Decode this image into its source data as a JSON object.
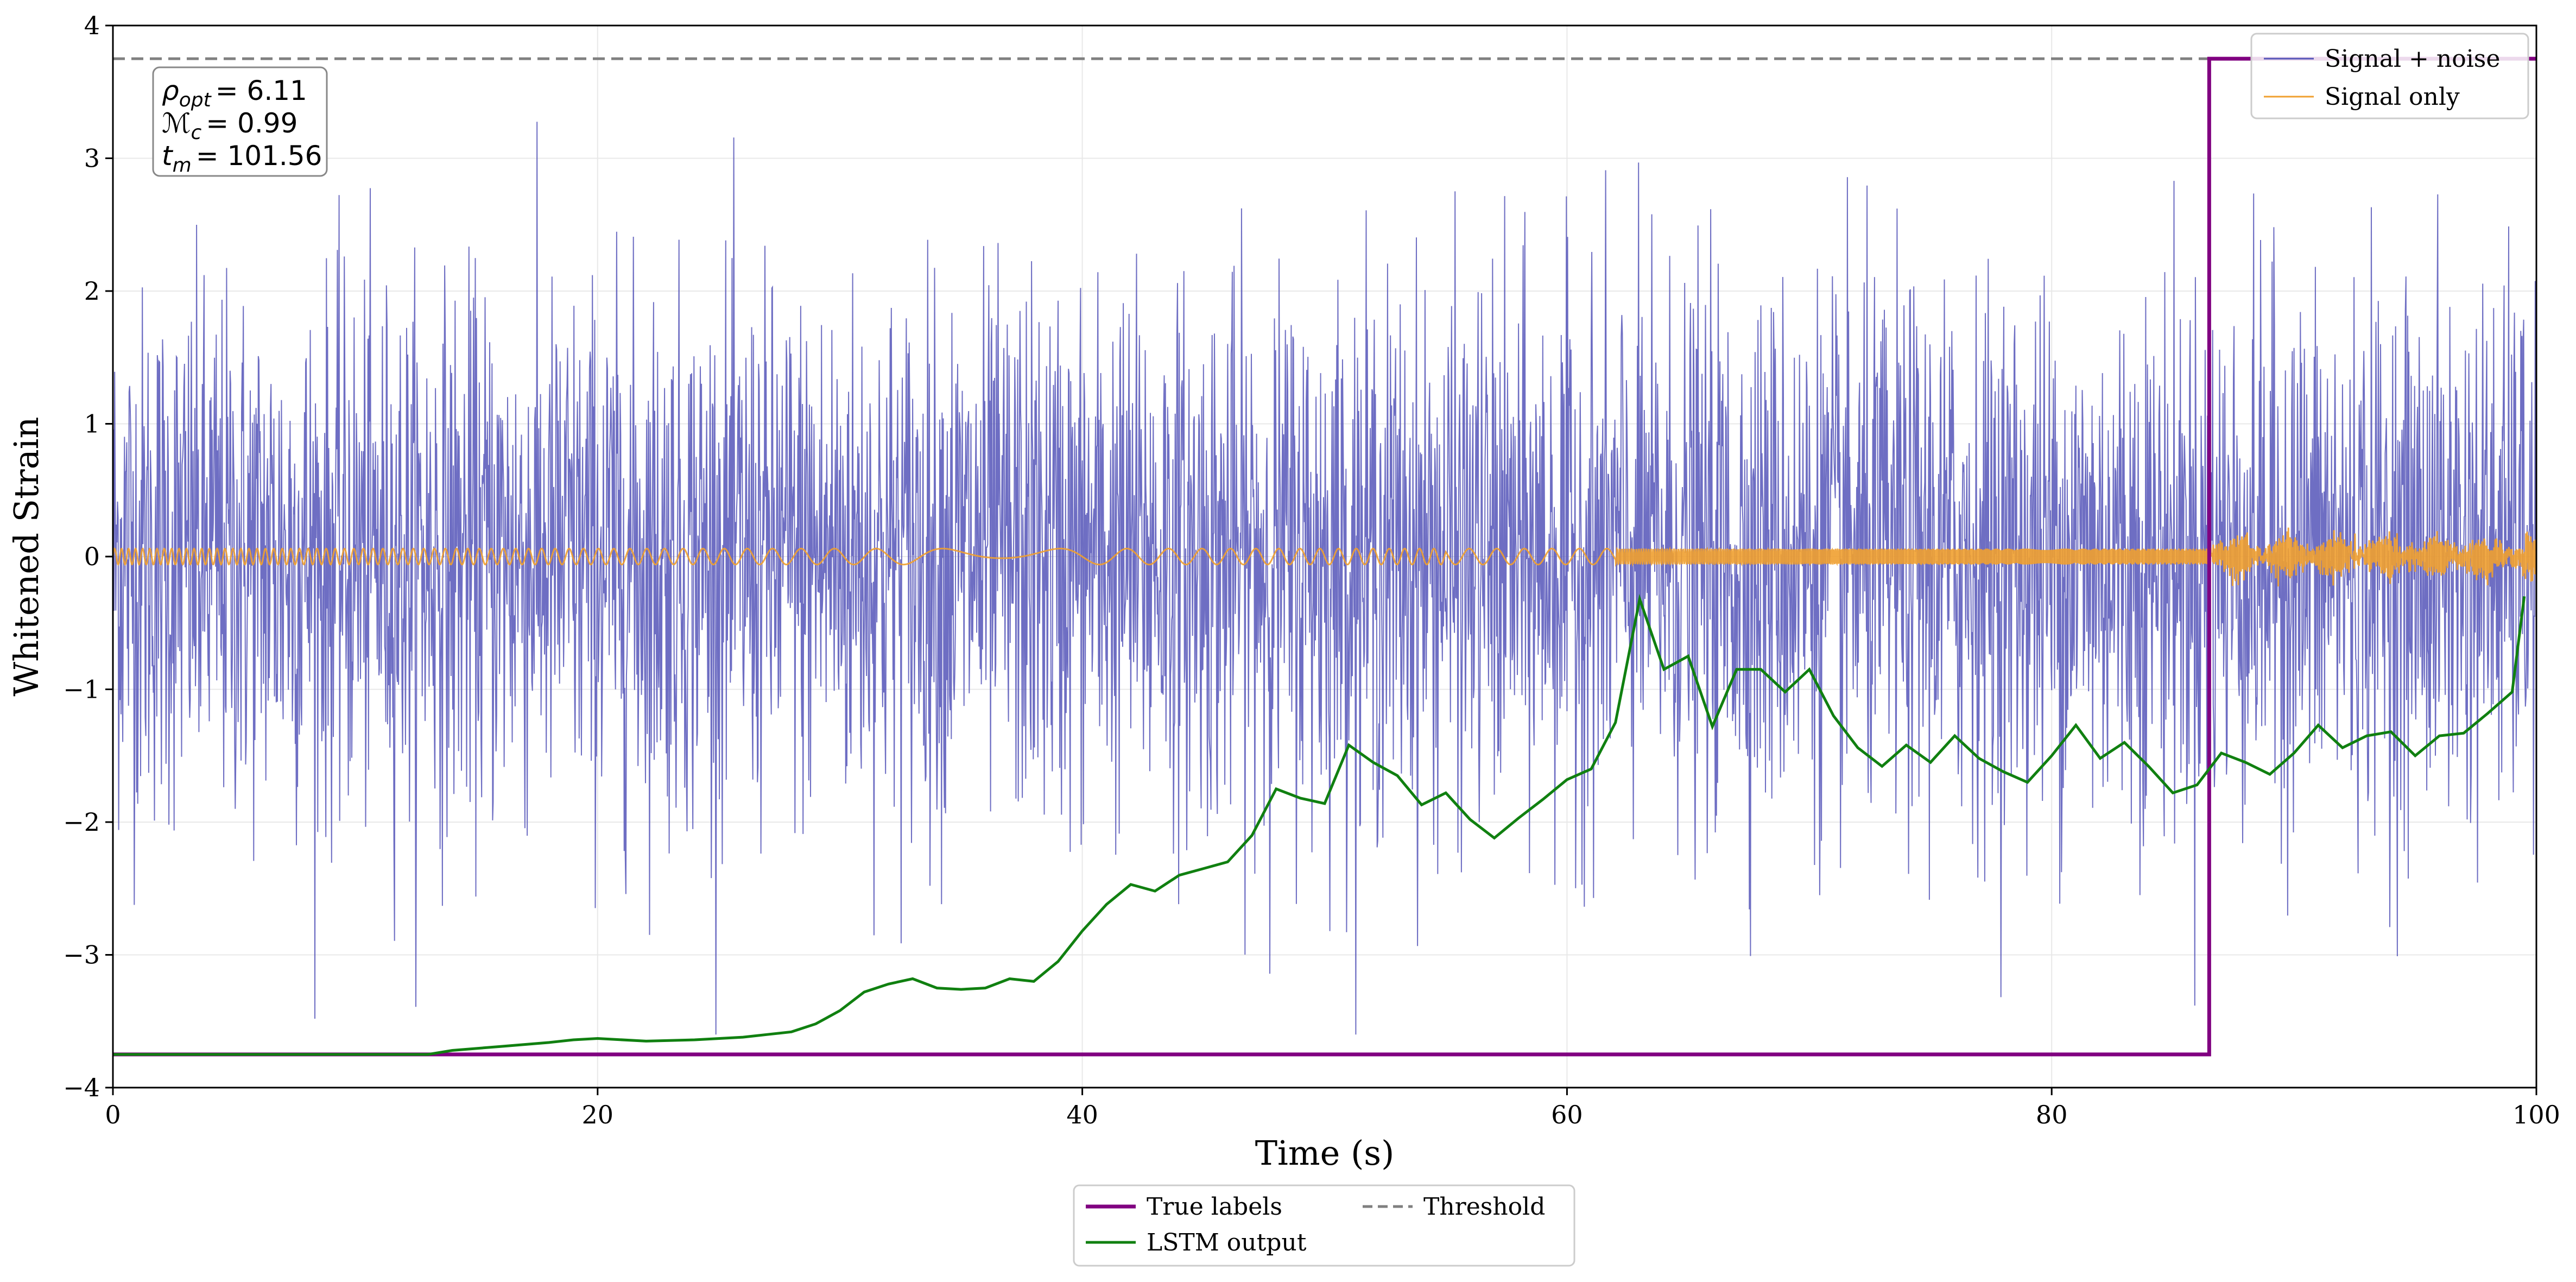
{
  "chart_data": {
    "type": "line",
    "xlabel": "Time (s)",
    "ylabel": "Whitened Strain",
    "xlim": [
      0,
      100
    ],
    "ylim": [
      -4,
      4
    ],
    "xticks": [
      0,
      20,
      40,
      60,
      80,
      100
    ],
    "yticks": [
      -4,
      -3,
      -2,
      -1,
      0,
      1,
      2,
      3,
      4
    ],
    "xtick_labels": [
      "0",
      "20",
      "40",
      "60",
      "80",
      "100"
    ],
    "ytick_labels": [
      "−4",
      "−3",
      "−2",
      "−1",
      "0",
      "1",
      "2",
      "3",
      "4"
    ],
    "grid": true,
    "annotation": {
      "lines": [
        {
          "sym": "ρ",
          "sub": "opt",
          "val": "= 6.11"
        },
        {
          "sym": "ℳ",
          "sub": "c",
          "val": "= 0.99"
        },
        {
          "sym": "t",
          "sub": "m",
          "val": "= 101.56"
        }
      ]
    },
    "series": [
      {
        "name": "Signal + noise",
        "color": "#5555b8",
        "kind": "noise",
        "amplitude_std": 1.0,
        "approx_range": [
          -3.6,
          3.5
        ]
      },
      {
        "name": "Signal only",
        "color": "#f0a030",
        "kind": "chirp",
        "amplitude": 0.06,
        "peak_amplitude": 0.15
      },
      {
        "name": "True labels",
        "color": "#800080",
        "kind": "step",
        "low": -3.75,
        "high": 3.75,
        "step_at": 86.5
      },
      {
        "name": "Threshold",
        "color": "#808080",
        "kind": "hline",
        "value": 3.75,
        "dashed": true
      },
      {
        "name": "LSTM output",
        "color": "#108010",
        "kind": "line",
        "x": [
          0,
          5,
          10,
          13,
          14,
          16,
          18,
          19,
          20,
          22,
          24,
          26,
          27,
          28,
          29,
          30,
          31,
          32,
          33,
          34,
          35,
          36,
          37,
          38,
          39,
          40,
          41,
          42,
          43,
          44,
          45,
          46,
          47,
          48,
          49,
          50,
          51,
          52,
          53,
          54,
          55,
          56,
          57,
          58,
          59,
          60,
          61,
          62,
          63,
          64,
          65,
          66,
          67,
          68,
          69,
          70,
          71,
          72,
          73,
          74,
          75,
          76,
          77,
          78,
          79,
          80,
          81,
          82,
          83,
          84,
          85,
          86,
          87,
          88,
          89,
          90,
          91,
          92,
          93,
          94,
          95,
          96,
          97,
          98,
          99,
          99.5
        ],
        "y": [
          -3.75,
          -3.75,
          -3.75,
          -3.75,
          -3.72,
          -3.69,
          -3.66,
          -3.64,
          -3.63,
          -3.65,
          -3.64,
          -3.62,
          -3.6,
          -3.58,
          -3.52,
          -3.42,
          -3.28,
          -3.22,
          -3.18,
          -3.25,
          -3.26,
          -3.25,
          -3.18,
          -3.2,
          -3.05,
          -2.82,
          -2.62,
          -2.47,
          -2.52,
          -2.4,
          -2.35,
          -2.3,
          -2.1,
          -1.75,
          -1.82,
          -1.86,
          -1.42,
          -1.55,
          -1.65,
          -1.87,
          -1.78,
          -1.98,
          -2.12,
          -1.97,
          -1.83,
          -1.68,
          -1.6,
          -1.25,
          -0.32,
          -0.85,
          -0.75,
          -1.28,
          -0.85,
          -0.85,
          -1.02,
          -0.85,
          -1.2,
          -1.44,
          -1.58,
          -1.42,
          -1.55,
          -1.35,
          -1.52,
          -1.62,
          -1.7,
          -1.5,
          -1.27,
          -1.52,
          -1.4,
          -1.58,
          -1.78,
          -1.72,
          -1.48,
          -1.55,
          -1.64,
          -1.48,
          -1.27,
          -1.44,
          -1.35,
          -1.32,
          -1.5,
          -1.35,
          -1.33,
          -1.18,
          -1.02,
          -0.3
        ]
      }
    ],
    "legend_upper": {
      "position": "top-right",
      "entries": [
        "Signal + noise",
        "Signal only"
      ]
    },
    "legend_lower": {
      "position": "bottom-center",
      "entries": [
        "True labels",
        "Threshold",
        "LSTM output"
      ]
    }
  }
}
